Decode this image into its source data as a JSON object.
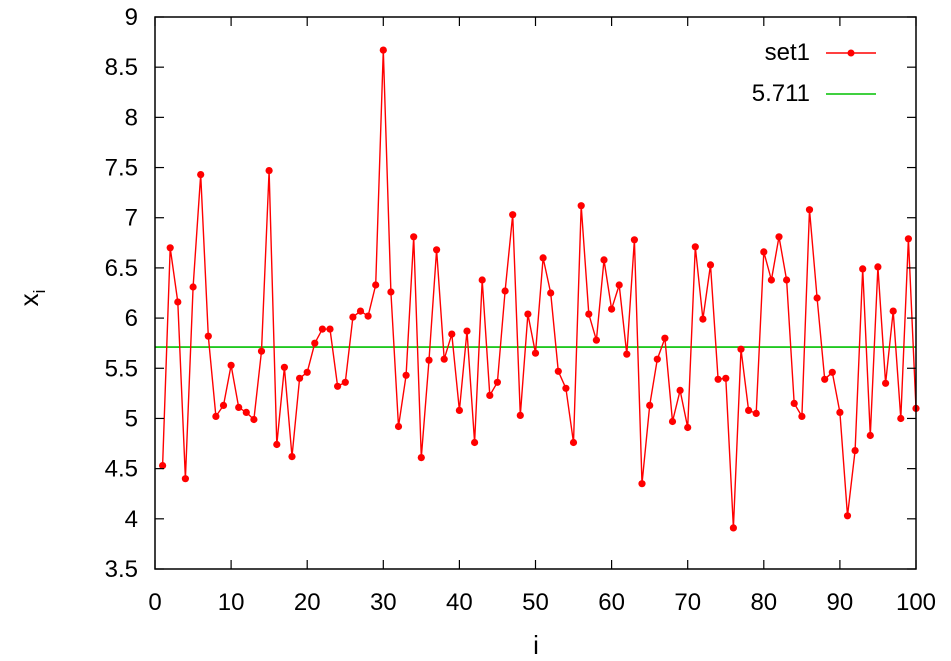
{
  "chart_data": {
    "type": "line",
    "xlabel": "i",
    "ylabel": "x",
    "ylabel_subscript": "i",
    "xlim": [
      0,
      100
    ],
    "ylim": [
      3.5,
      9
    ],
    "xticks": [
      0,
      10,
      20,
      30,
      40,
      50,
      60,
      70,
      80,
      90,
      100
    ],
    "xtick_labels": [
      "0",
      "10",
      "20",
      "30",
      "40",
      "50",
      "60",
      "70",
      "80",
      "90",
      "100"
    ],
    "yticks": [
      3.5,
      4,
      4.5,
      5,
      5.5,
      6,
      6.5,
      7,
      7.5,
      8,
      8.5,
      9
    ],
    "ytick_labels": [
      "3.5",
      "4",
      "4.5",
      "5",
      "5.5",
      "6",
      "6.5",
      "7",
      "7.5",
      "8",
      "8.5",
      "9"
    ],
    "grid": false,
    "legend_position": "top-right",
    "series": [
      {
        "name": "set1",
        "color": "#ff0000",
        "marker": "circle",
        "x": [
          1,
          2,
          3,
          4,
          5,
          6,
          7,
          8,
          9,
          10,
          11,
          12,
          13,
          14,
          15,
          16,
          17,
          18,
          19,
          20,
          21,
          22,
          23,
          24,
          25,
          26,
          27,
          28,
          29,
          30,
          31,
          32,
          33,
          34,
          35,
          36,
          37,
          38,
          39,
          40,
          41,
          42,
          43,
          44,
          45,
          46,
          47,
          48,
          49,
          50,
          51,
          52,
          53,
          54,
          55,
          56,
          57,
          58,
          59,
          60,
          61,
          62,
          63,
          64,
          65,
          66,
          67,
          68,
          69,
          70,
          71,
          72,
          73,
          74,
          75,
          76,
          77,
          78,
          79,
          80,
          81,
          82,
          83,
          84,
          85,
          86,
          87,
          88,
          89,
          90,
          91,
          92,
          93,
          94,
          95,
          96,
          97,
          98,
          99,
          100
        ],
        "y": [
          4.53,
          6.7,
          6.16,
          4.4,
          6.31,
          7.43,
          5.82,
          5.02,
          5.13,
          5.53,
          5.11,
          5.06,
          4.99,
          5.67,
          7.47,
          4.74,
          5.51,
          4.62,
          5.4,
          5.46,
          5.75,
          5.89,
          5.89,
          5.32,
          5.36,
          6.01,
          6.07,
          6.02,
          6.33,
          8.67,
          6.26,
          4.92,
          5.43,
          6.81,
          4.61,
          5.58,
          6.68,
          5.59,
          5.84,
          5.08,
          5.87,
          4.76,
          6.38,
          5.23,
          5.36,
          6.27,
          7.03,
          5.03,
          6.04,
          5.65,
          6.6,
          6.25,
          5.47,
          5.3,
          4.76,
          7.12,
          6.04,
          5.78,
          6.58,
          6.09,
          6.33,
          5.64,
          6.78,
          4.35,
          5.13,
          5.59,
          5.8,
          4.97,
          5.28,
          4.91,
          6.71,
          5.99,
          6.53,
          5.39,
          5.4,
          3.91,
          5.69,
          5.08,
          5.05,
          6.66,
          6.38,
          6.81,
          6.38,
          5.15,
          5.02,
          7.08,
          6.2,
          5.39,
          5.46,
          5.06,
          4.03,
          4.68,
          6.49,
          4.83,
          6.51,
          5.35,
          6.07,
          5.0,
          6.79,
          5.1
        ]
      },
      {
        "name": "5.711",
        "color": "#00c000",
        "marker": "none",
        "x": [
          0,
          100
        ],
        "y": [
          5.711,
          5.711
        ]
      }
    ]
  }
}
